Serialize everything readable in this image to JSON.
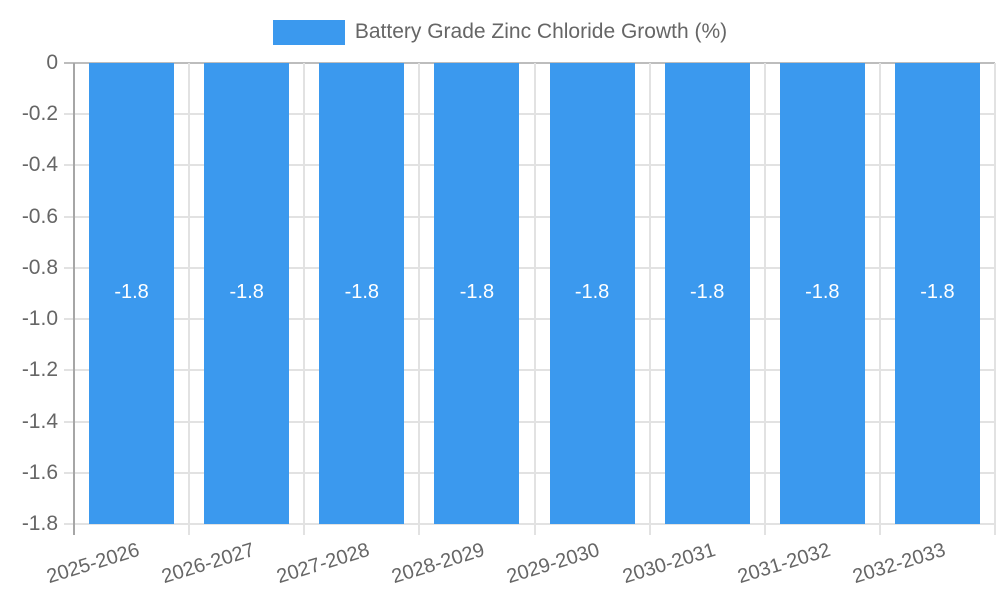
{
  "chart_data": {
    "type": "bar",
    "title": "Battery Grade Zinc Chloride Growth (%)",
    "legend": {
      "position": "top",
      "label": "Battery Grade Zinc Chloride Growth (%)"
    },
    "categories": [
      "2025-2026",
      "2026-2027",
      "2027-2028",
      "2028-2029",
      "2029-2030",
      "2030-2031",
      "2031-2032",
      "2032-2033"
    ],
    "values": [
      -1.8,
      -1.8,
      -1.8,
      -1.8,
      -1.8,
      -1.8,
      -1.8,
      -1.8
    ],
    "data_labels": [
      "-1.8",
      "-1.8",
      "-1.8",
      "-1.8",
      "-1.8",
      "-1.8",
      "-1.8",
      "-1.8"
    ],
    "xlabel": "",
    "ylabel": "",
    "ylim": [
      -1.8,
      0
    ],
    "yticks": {
      "values": [
        0,
        -0.2,
        -0.4,
        -0.6,
        -0.8,
        -1.0,
        -1.2,
        -1.4,
        -1.6,
        -1.8
      ],
      "labels": [
        "0",
        "-0.2",
        "-0.4",
        "-0.6",
        "-0.8",
        "-1.0",
        "-1.2",
        "-1.4",
        "-1.6",
        "-1.8"
      ]
    },
    "x_tick_rotation_deg": -17,
    "grid": true,
    "colors": {
      "bar": "#3B99EE",
      "bar_label": "#FFFFFF",
      "gridline": "#E2E2E2",
      "zero_line": "#BDBDBD",
      "axis_line": "#A6A6A6",
      "tick_text": "#666666"
    }
  }
}
